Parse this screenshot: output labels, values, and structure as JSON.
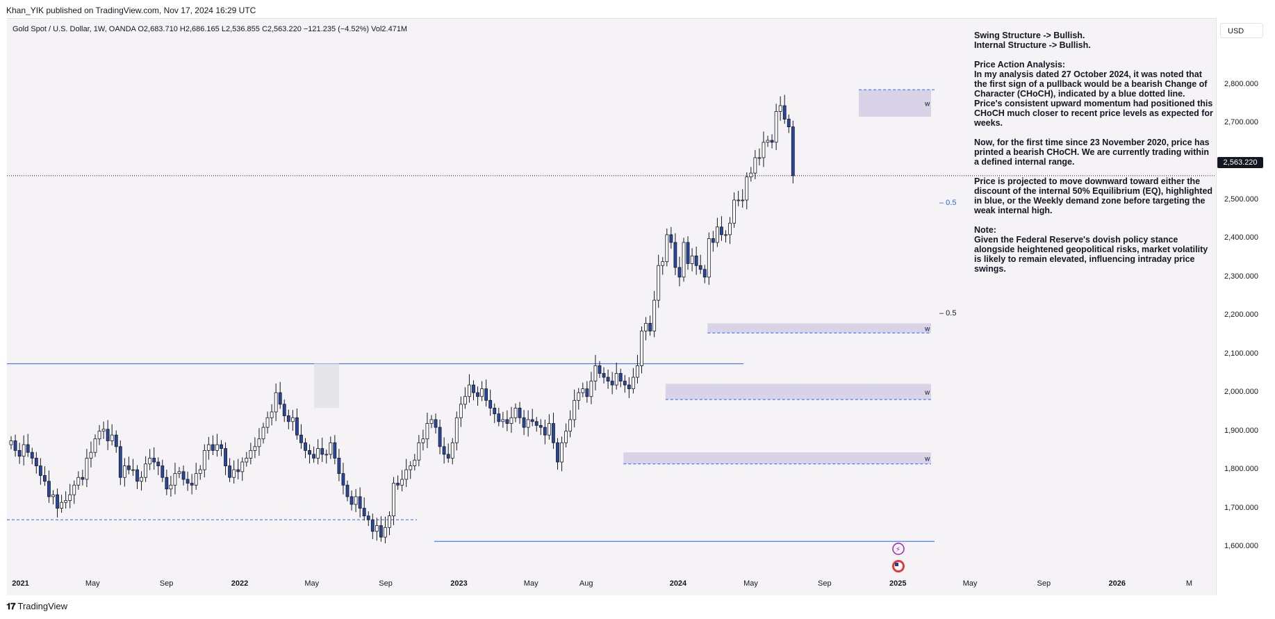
{
  "header": {
    "publisher": "Khan_YIK published on TradingView.com, Nov 17, 2024 16:29 UTC",
    "symbol_line": "Gold Spot / U.S. Dollar, 1W, OANDA  O2,683.710  H2,686.165  L2,536.855  C2,563.220  −121.235 (−4.52%)  Vol2.471M",
    "currency_button": "USD"
  },
  "footer": {
    "brand": "TradingView",
    "brand_icon": "tradingview-logo-icon"
  },
  "annotation": {
    "swing": "Swing Structure -> Bullish.",
    "internal": "Internal Structure -> Bullish.",
    "pa_title": "Price Action Analysis:",
    "pa_body": "In my analysis dated 27 October 2024, it was noted that the first sign of a pullback would be a bearish Change of Character (CHoCH), indicated by a blue dotted line. Price's consistent upward momentum had positioned this CHoCH much closer to recent price levels as expected for weeks.",
    "now": "Now, for the first time since 23 November 2020, price has printed a bearish CHoCH. We are currently trading within a defined internal range.",
    "projection": "Price is projected to move downward toward either the discount of the internal 50% Equilibrium (EQ), highlighted in blue, or the Weekly demand zone before targeting the weak internal high.",
    "note_title": "Note:",
    "note_body": "Given the Federal Reserve's dovish policy stance alongside heightened geopolitical risks, market volatility is likely to remain elevated, influencing intraday price swings."
  },
  "chart_data": {
    "type": "candlestick",
    "symbol": "XAUUSD",
    "timeframe": "1W",
    "last_price": "2,563.220",
    "y_ticks": [
      "2,800.000",
      "2,700.000",
      "2,600.000",
      "2,500.000",
      "2,400.000",
      "2,300.000",
      "2,200.000",
      "2,100.000",
      "2,000.000",
      "1,900.000",
      "1,800.000",
      "1,700.000",
      "1,600.000"
    ],
    "y_tick_values": [
      2800,
      2700,
      2600,
      2500,
      2400,
      2300,
      2200,
      2100,
      2000,
      1900,
      1800,
      1700,
      1600
    ],
    "x_ticks": [
      {
        "label": "2021",
        "bold": true,
        "date": "2021-01-01"
      },
      {
        "label": "May",
        "bold": false,
        "date": "2021-05-01"
      },
      {
        "label": "Sep",
        "bold": false,
        "date": "2021-09-01"
      },
      {
        "label": "2022",
        "bold": true,
        "date": "2022-01-01"
      },
      {
        "label": "May",
        "bold": false,
        "date": "2022-05-01"
      },
      {
        "label": "Sep",
        "bold": false,
        "date": "2022-09-01"
      },
      {
        "label": "2023",
        "bold": true,
        "date": "2023-01-01"
      },
      {
        "label": "May",
        "bold": false,
        "date": "2023-05-01"
      },
      {
        "label": "Aug",
        "bold": false,
        "date": "2023-08-01"
      },
      {
        "label": "2024",
        "bold": true,
        "date": "2024-01-01"
      },
      {
        "label": "May",
        "bold": false,
        "date": "2024-05-01"
      },
      {
        "label": "Sep",
        "bold": false,
        "date": "2024-09-01"
      },
      {
        "label": "2025",
        "bold": true,
        "date": "2025-01-01"
      },
      {
        "label": "May",
        "bold": false,
        "date": "2025-05-01"
      },
      {
        "label": "Sep",
        "bold": false,
        "date": "2025-09-01"
      },
      {
        "label": "2026",
        "bold": true,
        "date": "2026-01-01"
      },
      {
        "label": "M",
        "bold": false,
        "date": "2026-05-01"
      }
    ],
    "ohlc_close": [
      1875,
      1850,
      1835,
      1865,
      1845,
      1830,
      1810,
      1785,
      1770,
      1730,
      1735,
      1700,
      1715,
      1720,
      1735,
      1760,
      1780,
      1775,
      1830,
      1845,
      1880,
      1900,
      1905,
      1875,
      1890,
      1860,
      1780,
      1810,
      1800,
      1800,
      1770,
      1780,
      1815,
      1830,
      1820,
      1810,
      1780,
      1750,
      1760,
      1790,
      1795,
      1775,
      1765,
      1760,
      1790,
      1800,
      1850,
      1865,
      1850,
      1865,
      1855,
      1810,
      1780,
      1800,
      1795,
      1820,
      1830,
      1850,
      1860,
      1880,
      1910,
      1935,
      1950,
      2000,
      1970,
      1940,
      1925,
      1935,
      1890,
      1870,
      1850,
      1840,
      1830,
      1855,
      1840,
      1840,
      1870,
      1830,
      1790,
      1760,
      1730,
      1710,
      1730,
      1700,
      1680,
      1670,
      1640,
      1655,
      1625,
      1650,
      1680,
      1765,
      1760,
      1775,
      1800,
      1810,
      1825,
      1870,
      1880,
      1920,
      1930,
      1910,
      1860,
      1840,
      1830,
      1870,
      1935,
      1970,
      1990,
      2020,
      2000,
      1990,
      2010,
      1980,
      1960,
      1945,
      1925,
      1930,
      1920,
      1935,
      1960,
      1935,
      1910,
      1930,
      1925,
      1915,
      1910,
      1890,
      1920,
      1870,
      1820,
      1870,
      1900,
      1930,
      1980,
      2000,
      2010,
      1990,
      2030,
      2070,
      2050,
      2040,
      2030,
      2020,
      2050,
      2030,
      2020,
      2010,
      2040,
      2070,
      2160,
      2180,
      2160,
      2240,
      2330,
      2340,
      2410,
      2390,
      2325,
      2300,
      2390,
      2335,
      2355,
      2330,
      2320,
      2300,
      2400,
      2390,
      2430,
      2410,
      2410,
      2440,
      2500,
      2500,
      2500,
      2560,
      2570,
      2610,
      2610,
      2650,
      2655,
      2650,
      2730,
      2745,
      2710,
      2690,
      2563.22
    ],
    "weekly_demand_zones": [
      {
        "label": "w",
        "low": 2155,
        "high": 2180,
        "from": "2024-02-19",
        "to": "2024-11-24"
      },
      {
        "label": "w",
        "low": 1982,
        "high": 2023,
        "from": "2023-12-11",
        "to": "2024-11-24"
      },
      {
        "label": "w",
        "low": 1815,
        "high": 1845,
        "from": "2023-10-02",
        "to": "2024-11-24"
      }
    ],
    "weekly_supply_zone": {
      "label": "w",
      "low": 2720,
      "high": 2790,
      "from": "2024-10-28",
      "to": "2024-11-24"
    },
    "strong_low": 1614,
    "weak_high_line": 2075,
    "eq_labels": [
      {
        "label": "0.5",
        "value": 2490,
        "color": "#2962ff"
      },
      {
        "label": "0.5",
        "value": 2205,
        "color": "#131722"
      }
    ]
  },
  "colors": {
    "bull_body": "#ffffff",
    "bear_body": "#2848a0",
    "wick": "#131722",
    "zone": "#d8d3e6",
    "structure_line": "#2962ff",
    "panel_bg": "#f5f3f6"
  },
  "icons": [
    "lightning-icon",
    "us-flag-icon"
  ]
}
